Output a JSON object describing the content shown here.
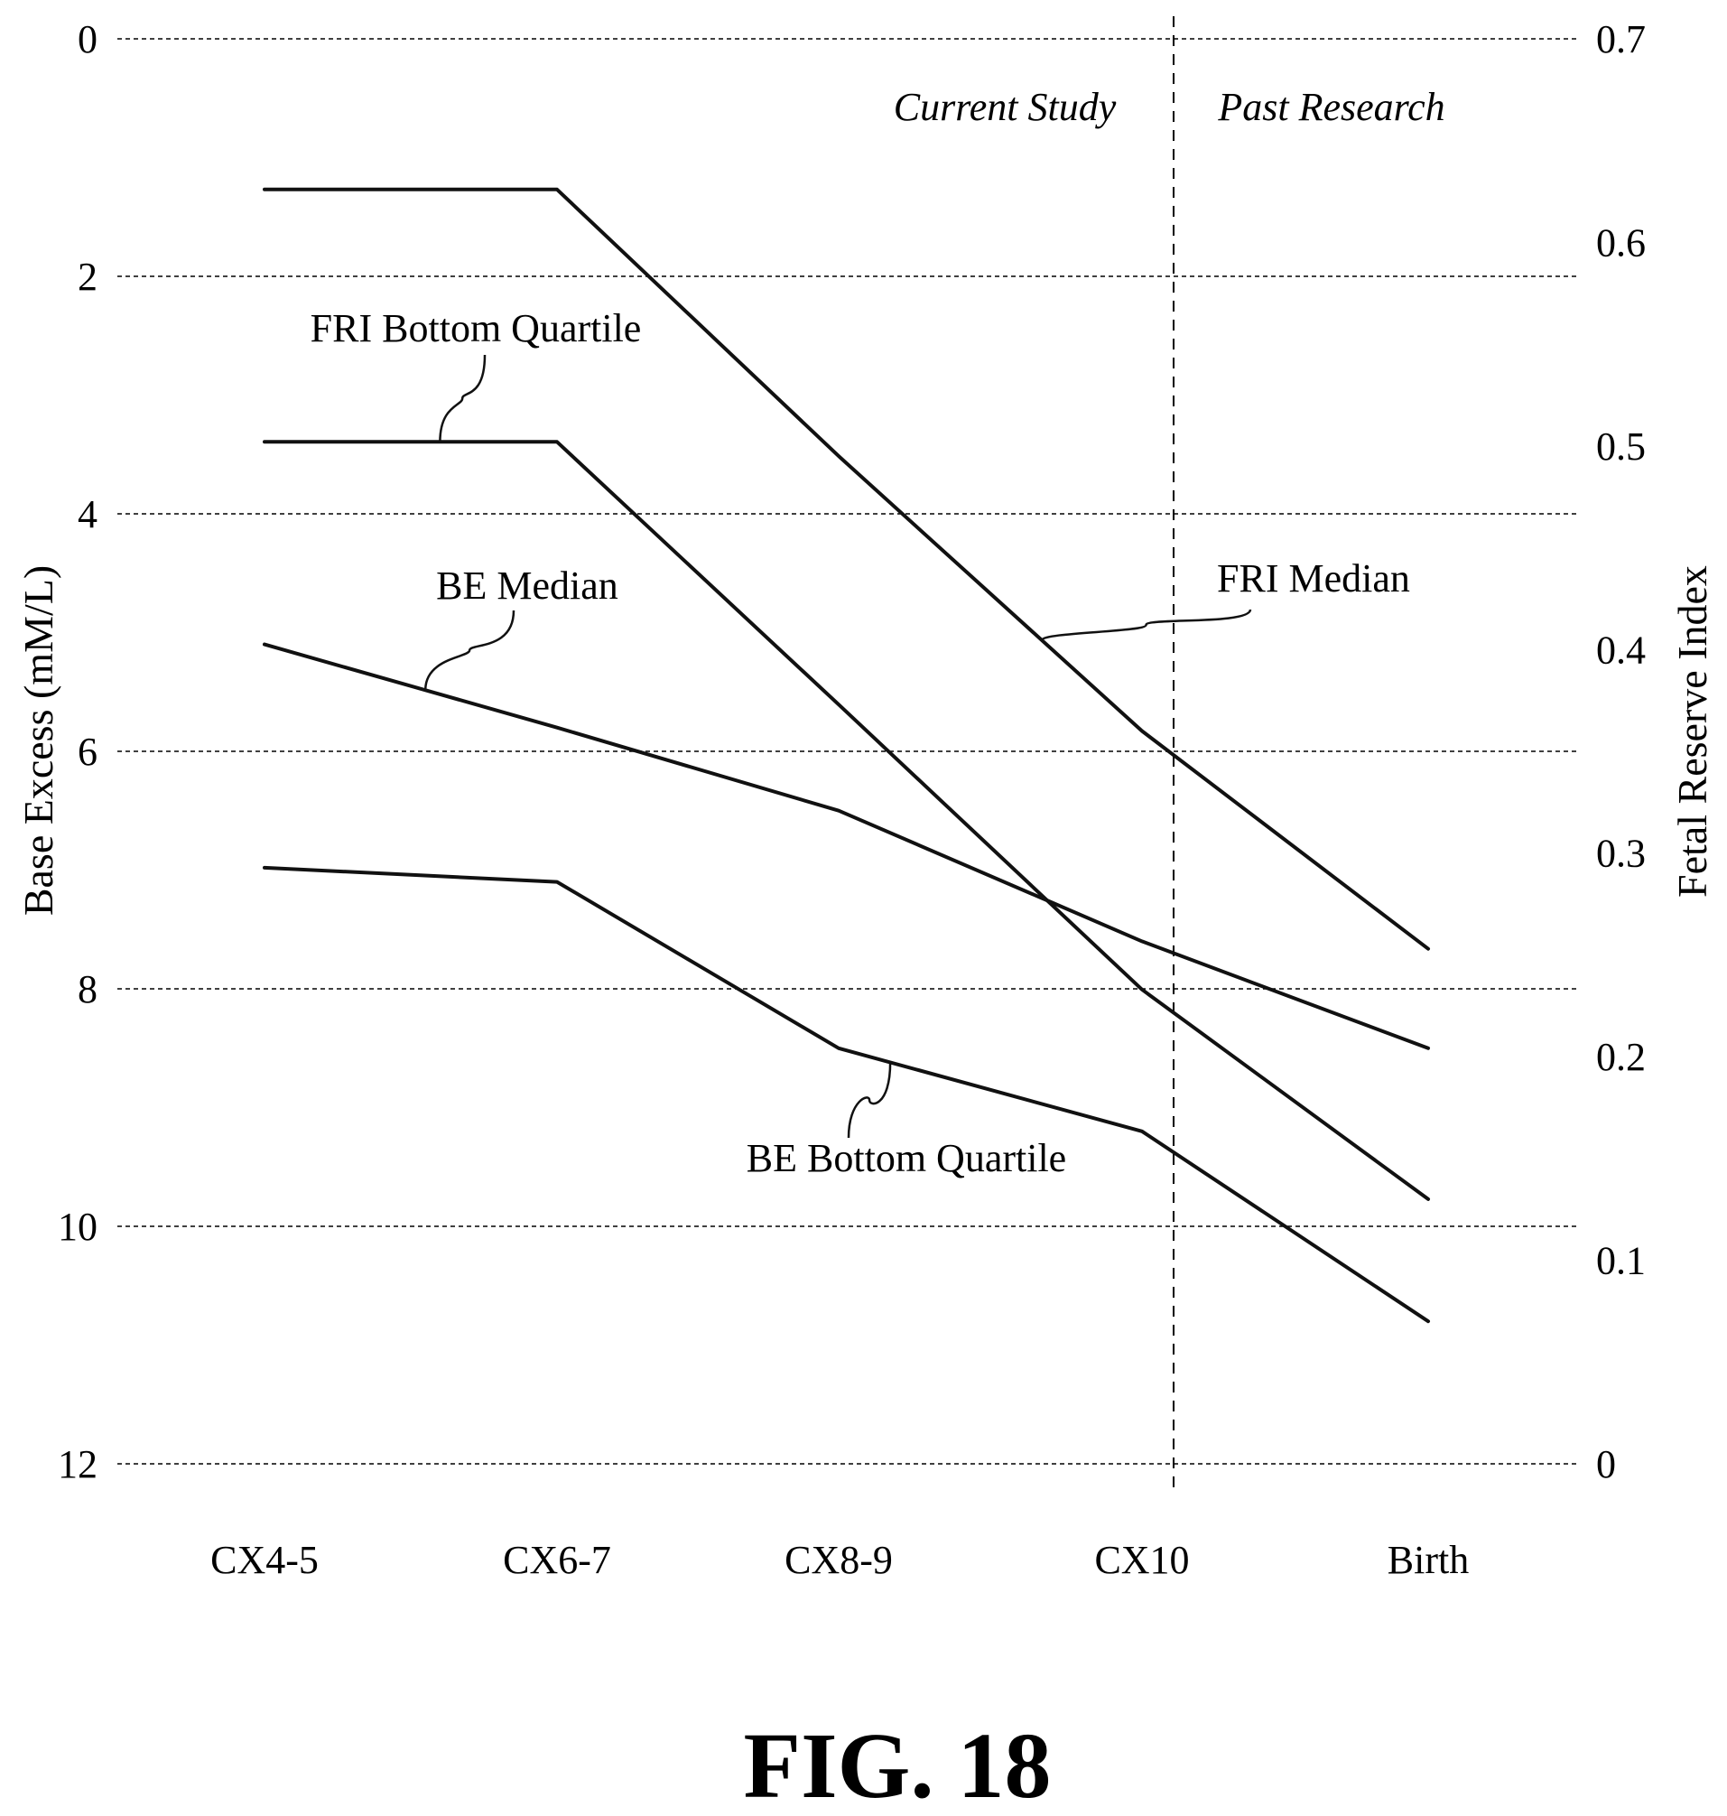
{
  "figure_label": "FIG. 18",
  "chart_data": {
    "type": "line",
    "categories": [
      "CX4-5",
      "CX6-7",
      "CX8-9",
      "CX10",
      "Birth"
    ],
    "y_left": {
      "label": "Base Excess (mM/L)",
      "lim": [
        0,
        12
      ],
      "inverted": true,
      "ticks": [
        "0",
        "2",
        "4",
        "6",
        "8",
        "10",
        "12"
      ]
    },
    "y_right": {
      "label": "Fetal Reserve Index",
      "lim": [
        0,
        0.7
      ],
      "ticks": [
        "0",
        "0.1",
        "0.2",
        "0.3",
        "0.4",
        "0.5",
        "0.6",
        "0.7"
      ]
    },
    "grid": true,
    "regions": [
      "Current Study",
      "Past Research"
    ],
    "series": [
      {
        "name": "FRI Median",
        "axis": "right",
        "values": [
          0.626,
          0.626,
          0.495,
          0.36,
          0.253
        ]
      },
      {
        "name": "FRI Bottom Quartile",
        "axis": "right",
        "values": [
          0.502,
          0.502,
          0.373,
          0.233,
          0.13
        ]
      },
      {
        "name": "BE Median",
        "axis": "left",
        "values": [
          5.1,
          5.8,
          6.5,
          7.6,
          8.5
        ]
      },
      {
        "name": "BE Bottom Quartile",
        "axis": "left",
        "values": [
          6.98,
          7.1,
          8.5,
          9.2,
          10.8
        ]
      }
    ]
  }
}
